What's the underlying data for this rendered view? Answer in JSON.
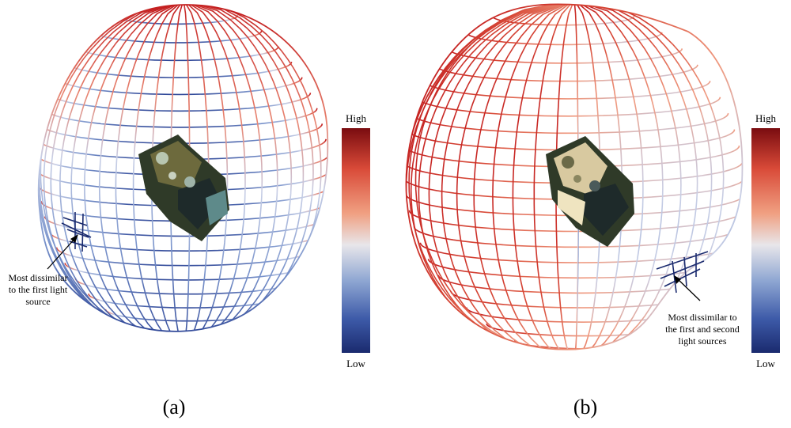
{
  "panels": [
    {
      "caption": "(a)",
      "annotation": [
        "Most dissimilar",
        "to the first light",
        "source"
      ],
      "colorbar": {
        "high": "High",
        "low": "Low"
      }
    },
    {
      "caption": "(b)",
      "annotation": [
        "Most dissimilar to",
        "the first and second",
        "light sources"
      ],
      "colorbar": {
        "high": "High",
        "low": "Low"
      }
    }
  ],
  "colormap": [
    "#1a2a6e",
    "#3d5aa8",
    "#8ea6d2",
    "#e8e6ea",
    "#f0a082",
    "#d94a38",
    "#7a0c10"
  ],
  "icons": {
    "object": "metal-part-render",
    "arrow": "arrow-icon"
  }
}
